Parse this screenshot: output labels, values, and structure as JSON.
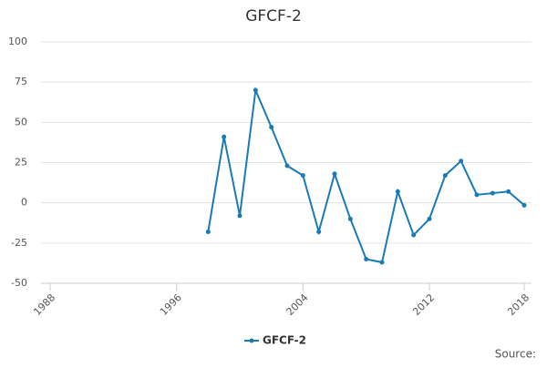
{
  "chart_data": {
    "type": "line",
    "title": "GFCF-2",
    "x": [
      1998,
      1999,
      2000,
      2001,
      2002,
      2003,
      2004,
      2005,
      2006,
      2007,
      2008,
      2009,
      2010,
      2011,
      2012,
      2013,
      2014,
      2015,
      2016,
      2017,
      2018
    ],
    "series": [
      {
        "name": "GFCF-2",
        "color": "#1a7ab5",
        "values": [
          -18,
          41,
          -8,
          70,
          47,
          23,
          17,
          -18,
          18,
          -10,
          -35,
          -37,
          7,
          -20,
          -10,
          17,
          26,
          5,
          6,
          7,
          -1.5
        ]
      }
    ],
    "xlim": [
      1988,
      2018
    ],
    "xticks": [
      1988,
      1996,
      2004,
      2012,
      2018
    ],
    "ylim": [
      -50,
      100
    ],
    "yticks": [
      -50,
      -25,
      0,
      25,
      50,
      75,
      100
    ],
    "grid": true,
    "legend": "bottom",
    "source": "Source:"
  }
}
